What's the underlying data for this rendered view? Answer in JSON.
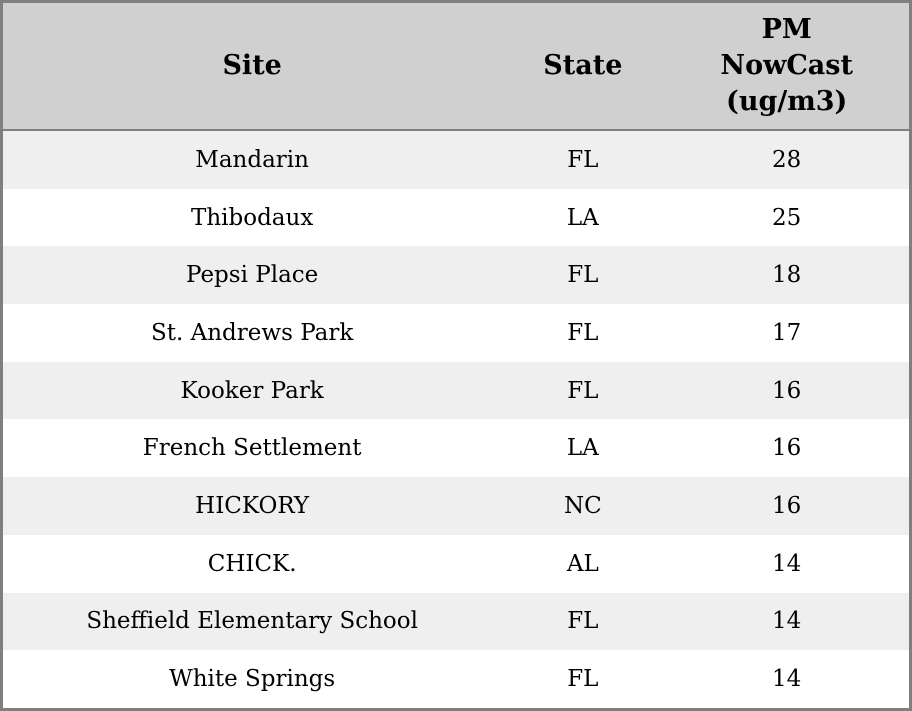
{
  "chart_data": {
    "type": "table",
    "title": "",
    "columns": [
      "Site",
      "State",
      "PM NowCast (ug/m3)"
    ],
    "rows": [
      {
        "site": "Mandarin",
        "state": "FL",
        "pm": "28"
      },
      {
        "site": "Thibodaux",
        "state": "LA",
        "pm": "25"
      },
      {
        "site": "Pepsi Place",
        "state": "FL",
        "pm": "18"
      },
      {
        "site": "St. Andrews Park",
        "state": "FL",
        "pm": "17"
      },
      {
        "site": "Kooker Park",
        "state": "FL",
        "pm": "16"
      },
      {
        "site": "French Settlement",
        "state": "LA",
        "pm": "16"
      },
      {
        "site": "HICKORY",
        "state": "NC",
        "pm": "16"
      },
      {
        "site": "CHICK.",
        "state": "AL",
        "pm": "14"
      },
      {
        "site": "Sheffield Elementary School",
        "state": "FL",
        "pm": "14"
      },
      {
        "site": "White Springs",
        "state": "FL",
        "pm": "14"
      }
    ]
  },
  "header": {
    "site_label": "Site",
    "state_label": "State",
    "pm_label": "PM\nNowCast\n(ug/m3)"
  },
  "colors": {
    "outer_border": "#7f7f7f",
    "header_background": "#d0d0d0",
    "header_divider": "#7f7f7f",
    "row_stripe": "#efefef",
    "row_plain": "#ffffff",
    "text": "#000000"
  }
}
